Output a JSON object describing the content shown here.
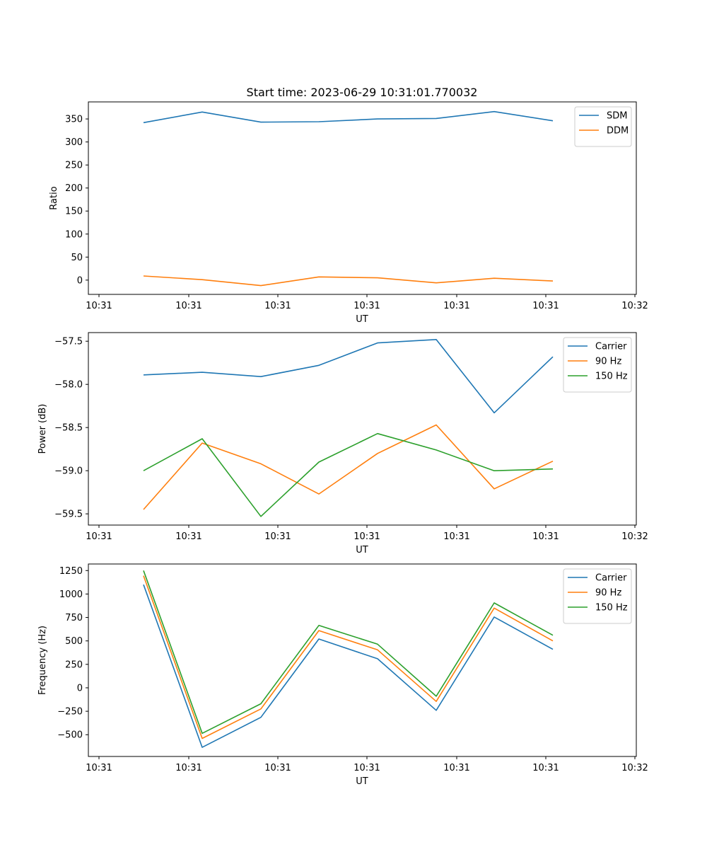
{
  "figure": {
    "title": "Start time: 2023-06-29 10:31:01.770032"
  },
  "colors": {
    "blue": "#1f77b4",
    "orange": "#ff7f0e",
    "green": "#2ca02c"
  },
  "chart_data": [
    {
      "type": "line",
      "title": "Start time: 2023-06-29 10:31:01.770032",
      "xlabel": "UT",
      "ylabel": "Ratio",
      "x_tick_labels": [
        "10:31",
        "10:31",
        "10:31",
        "10:31",
        "10:31",
        "10:31",
        "10:32"
      ],
      "y_ticks": [
        0,
        50,
        100,
        150,
        200,
        250,
        300,
        350
      ],
      "y_tick_labels": [
        "0",
        "50",
        "100",
        "150",
        "200",
        "250",
        "300",
        "350"
      ],
      "ylim": [
        -31,
        387
      ],
      "legend_position": "top-right",
      "grid": false,
      "series": [
        {
          "name": "SDM",
          "color": "#1f77b4",
          "values": [
            342,
            365,
            343,
            344,
            350,
            351,
            366,
            346
          ]
        },
        {
          "name": "DDM",
          "color": "#ff7f0e",
          "values": [
            9,
            1,
            -12,
            7,
            5,
            -6,
            4,
            -2
          ]
        }
      ]
    },
    {
      "type": "line",
      "title": "",
      "xlabel": "UT",
      "ylabel": "Power (dB)",
      "x_tick_labels": [
        "10:31",
        "10:31",
        "10:31",
        "10:31",
        "10:31",
        "10:31",
        "10:32"
      ],
      "y_ticks": [
        -57.5,
        -58.0,
        -58.5,
        -59.0,
        -59.5
      ],
      "y_tick_labels": [
        "−57.5",
        "−58.0",
        "−58.5",
        "−59.0",
        "−59.5"
      ],
      "ylim": [
        -59.63,
        -57.4
      ],
      "legend_position": "top-right",
      "grid": false,
      "series": [
        {
          "name": "Carrier",
          "color": "#1f77b4",
          "values": [
            -57.89,
            -57.86,
            -57.91,
            -57.78,
            -57.52,
            -57.48,
            -58.33,
            -57.68
          ]
        },
        {
          "name": "90 Hz",
          "color": "#ff7f0e",
          "values": [
            -59.45,
            -58.68,
            -58.92,
            -59.27,
            -58.8,
            -58.47,
            -59.21,
            -58.89
          ]
        },
        {
          "name": "150 Hz",
          "color": "#2ca02c",
          "values": [
            -59.0,
            -58.63,
            -59.53,
            -58.9,
            -58.57,
            -58.76,
            -59.0,
            -58.98
          ]
        }
      ]
    },
    {
      "type": "line",
      "title": "",
      "xlabel": "UT",
      "ylabel": "Frequency (Hz)",
      "x_tick_labels": [
        "10:31",
        "10:31",
        "10:31",
        "10:31",
        "10:31",
        "10:31",
        "10:32"
      ],
      "y_ticks": [
        -500,
        -250,
        0,
        250,
        500,
        750,
        1000,
        1250
      ],
      "y_tick_labels": [
        "−500",
        "−250",
        "0",
        "250",
        "500",
        "750",
        "1000",
        "1250"
      ],
      "ylim": [
        -732,
        1320
      ],
      "legend_position": "top-right",
      "grid": false,
      "series": [
        {
          "name": "Carrier",
          "color": "#1f77b4",
          "values": [
            1100,
            -635,
            -315,
            520,
            310,
            -240,
            755,
            410
          ]
        },
        {
          "name": "90 Hz",
          "color": "#ff7f0e",
          "values": [
            1195,
            -540,
            -225,
            610,
            405,
            -145,
            850,
            500
          ]
        },
        {
          "name": "150 Hz",
          "color": "#2ca02c",
          "values": [
            1250,
            -485,
            -170,
            665,
            465,
            -90,
            905,
            560
          ]
        }
      ]
    }
  ]
}
